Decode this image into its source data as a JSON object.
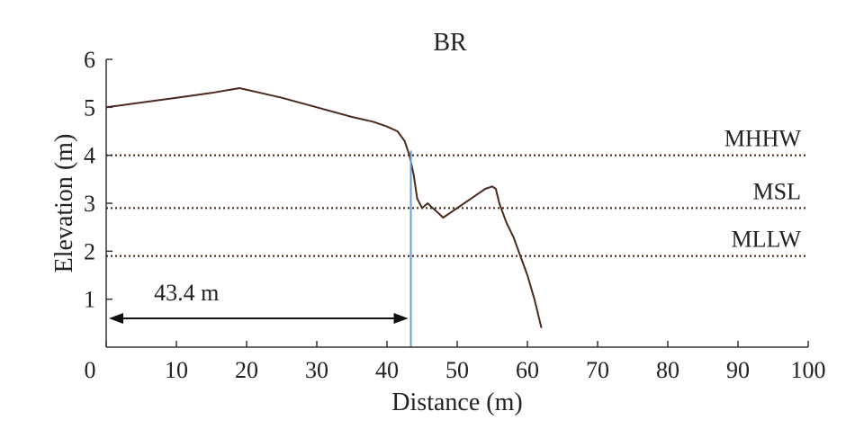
{
  "chart_data": {
    "type": "line",
    "title": "BR",
    "xlabel": "Distance (m)",
    "ylabel": "Elevation (m)",
    "xlim": [
      0,
      100
    ],
    "ylim": [
      0,
      6
    ],
    "x_ticks": [
      0,
      10,
      20,
      30,
      40,
      50,
      60,
      70,
      80,
      90,
      100
    ],
    "y_ticks": [
      1,
      2,
      3,
      4,
      5,
      6
    ],
    "x_tick_labels": [
      "0",
      "10",
      "20",
      "30",
      "40",
      "50",
      "60",
      "70",
      "80",
      "90",
      "100"
    ],
    "y_tick_labels": [
      "1",
      "2",
      "3",
      "4",
      "5",
      "6"
    ],
    "grid": false,
    "series": [
      {
        "color": "#4a2a1e",
        "x": [
          0,
          5,
          10,
          15,
          19,
          22,
          25,
          30,
          35,
          38,
          40,
          41.5,
          42.5,
          43.2,
          43.8,
          44.3,
          45,
          45.8,
          46.5,
          47.3,
          48,
          49,
          50,
          51,
          52,
          53,
          54,
          55,
          55.5,
          56,
          57,
          58,
          59,
          60,
          61,
          62
        ],
        "y": [
          5.0,
          5.1,
          5.2,
          5.3,
          5.4,
          5.3,
          5.2,
          5.0,
          4.8,
          4.7,
          4.6,
          4.5,
          4.3,
          4.0,
          3.6,
          3.1,
          2.9,
          3.0,
          2.9,
          2.8,
          2.7,
          2.8,
          2.9,
          3.0,
          3.1,
          3.2,
          3.3,
          3.35,
          3.3,
          3.0,
          2.6,
          2.3,
          1.9,
          1.5,
          1.0,
          0.4
        ]
      }
    ],
    "reference_lines": [
      {
        "label": "MHHW",
        "y": 4.0,
        "style": "dotted",
        "color": "#4a2a1e"
      },
      {
        "label": "MSL",
        "y": 2.9,
        "style": "dotted",
        "color": "#4a2a1e"
      },
      {
        "label": "MLLW",
        "y": 1.9,
        "style": "dotted",
        "color": "#4a2a1e"
      }
    ],
    "vertical_marker": {
      "x": 43.4,
      "color": "#6a9fd4"
    },
    "distance_annotation": {
      "label": "43.4 m",
      "x_start": 0,
      "x_end": 43.4,
      "y": 0.6
    }
  }
}
